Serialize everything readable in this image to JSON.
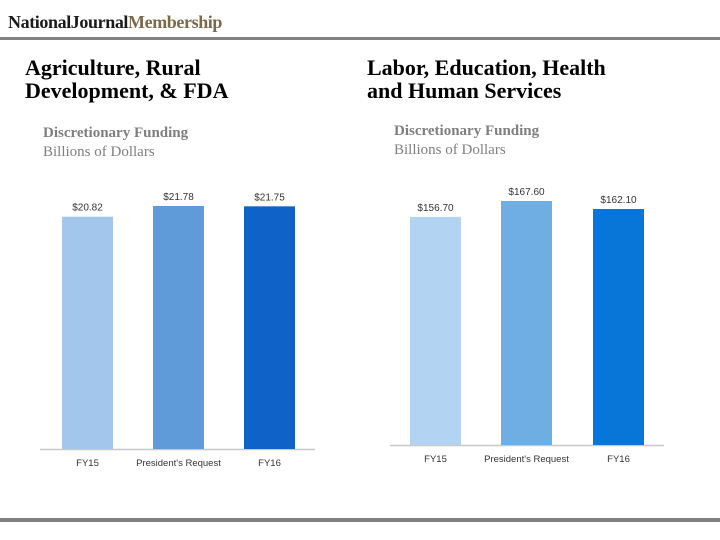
{
  "header": {
    "brand_part1": "NationalJournal",
    "brand_part2": "Membership"
  },
  "panels": [
    {
      "title_line1": "Agriculture, Rural",
      "title_line2": "Development, & FDA",
      "subtitle1": "Discretionary Funding",
      "subtitle2": "Billions of Dollars"
    },
    {
      "title_line1": "Labor, Education, Health",
      "title_line2": "and Human Services",
      "subtitle1": "Discretionary Funding",
      "subtitle2": "Billions of Dollars"
    }
  ],
  "chart_data": [
    {
      "type": "bar",
      "title": "Agriculture, Rural Development, & FDA",
      "ylabel": "Billions of Dollars",
      "categories": [
        "FY15",
        "President's Request",
        "FY16"
      ],
      "values": [
        20.82,
        21.78,
        21.75
      ],
      "value_labels": [
        "$20.82",
        "$21.78",
        "$21.75"
      ],
      "colors": [
        "#a3c6ec",
        "#5f9ad9",
        "#0f62c8"
      ],
      "grid": false
    },
    {
      "type": "bar",
      "title": "Labor, Education, Health and Human Services",
      "ylabel": "Billions of Dollars",
      "categories": [
        "FY15",
        "President's Request",
        "FY16"
      ],
      "values": [
        156.7,
        167.6,
        162.1
      ],
      "value_labels": [
        "$156.70",
        "$167.60",
        "$162.10"
      ],
      "colors": [
        "#b2d3f1",
        "#6eaee3",
        "#0876d8"
      ],
      "grid": false
    }
  ]
}
